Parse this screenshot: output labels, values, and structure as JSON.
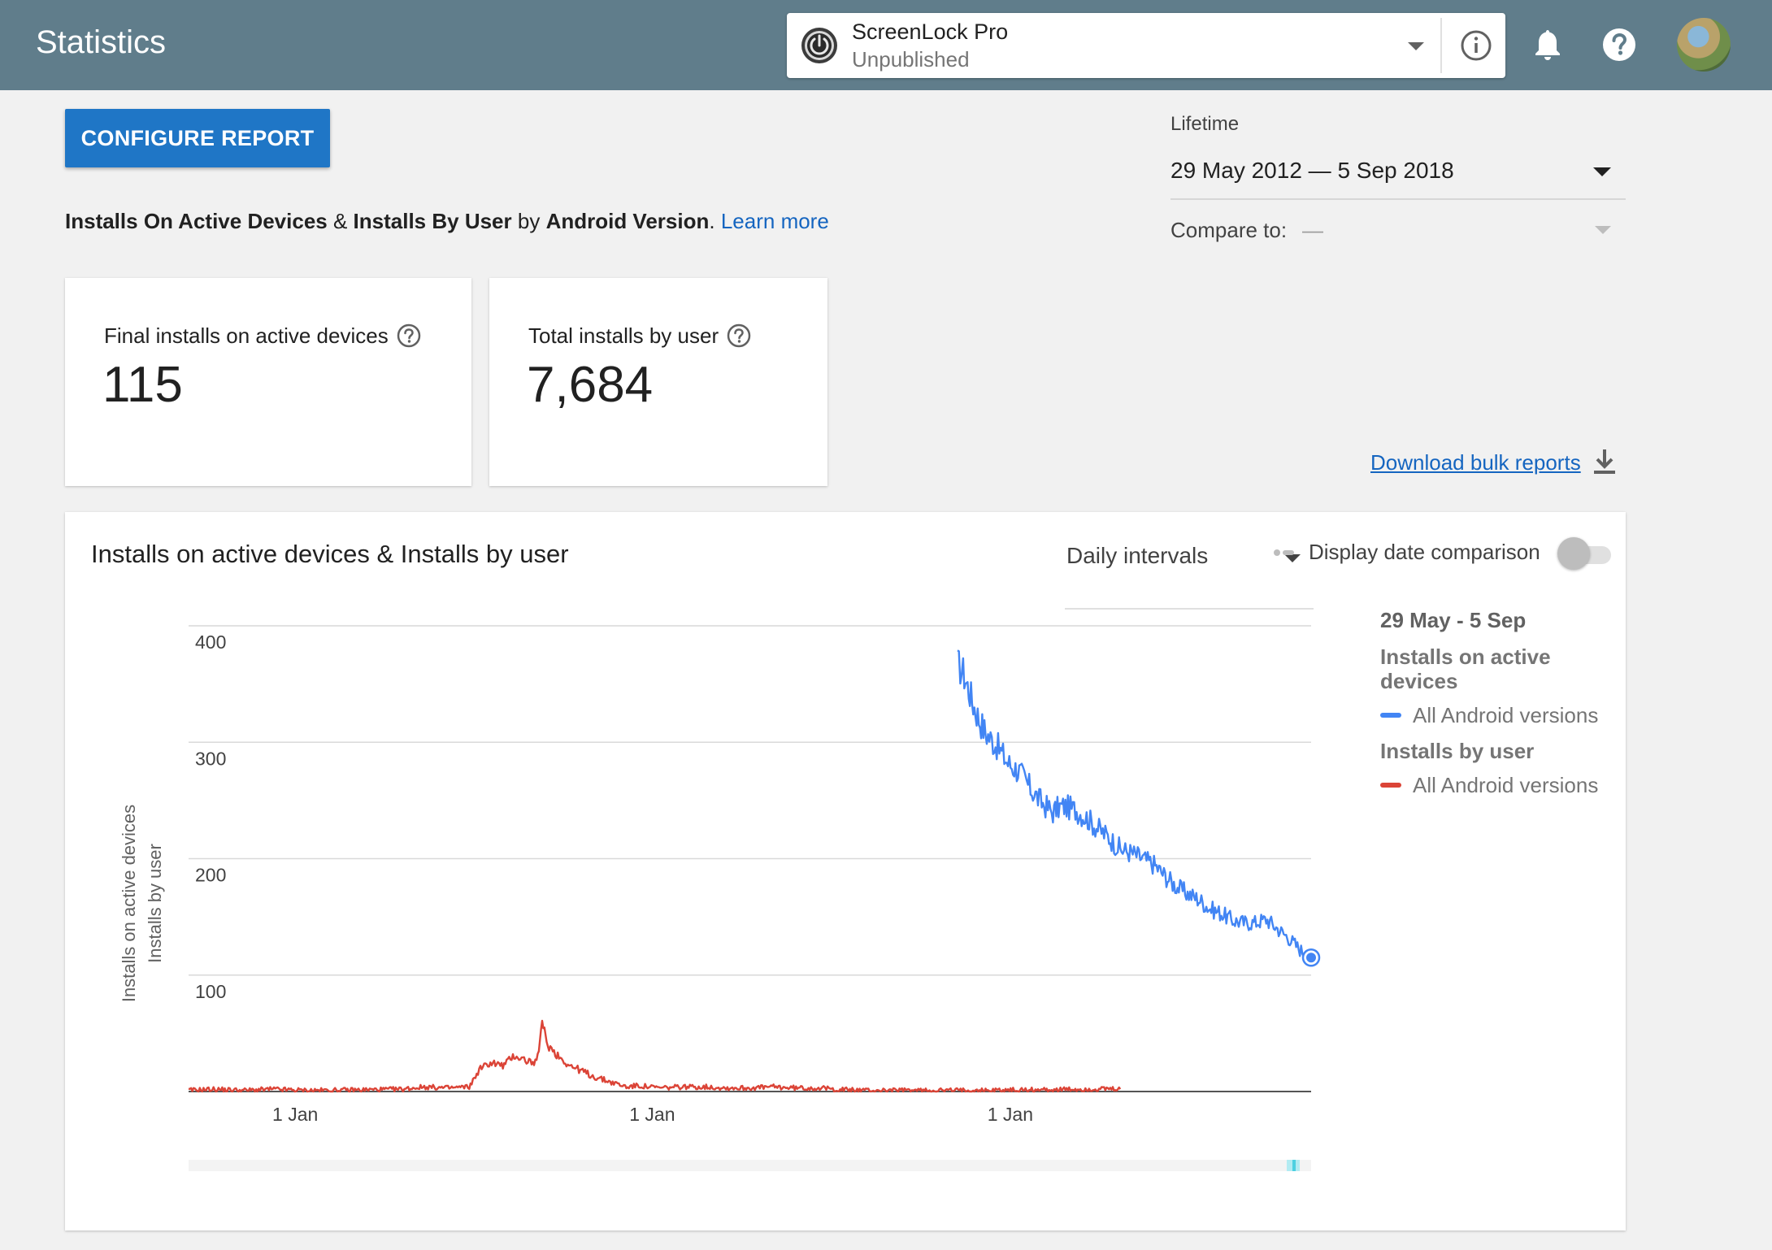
{
  "header": {
    "title": "Statistics",
    "app": {
      "name": "ScreenLock Pro",
      "status": "Unpublished"
    }
  },
  "toolbar": {
    "configure_label": "CONFIGURE REPORT"
  },
  "description": {
    "part1": "Installs On Active Devices",
    "amp": " & ",
    "part2": "Installs By User",
    "by": " by ",
    "part3": "Android Version",
    "period": ".",
    "learn_more": "Learn more"
  },
  "date_range": {
    "label": "Lifetime",
    "value": "29 May 2012 — 5 Sep 2018",
    "compare_label": "Compare to:",
    "compare_value": "—"
  },
  "stats": [
    {
      "label": "Final installs on active devices",
      "value": "115"
    },
    {
      "label": "Total installs by user",
      "value": "7,684"
    }
  ],
  "download_label": "Download bulk reports",
  "chart_section": {
    "title": "Installs on active devices & Installs by user",
    "interval": "Daily intervals",
    "comparison_label": "Display date comparison",
    "comparison_on": false
  },
  "legend": {
    "date": "29 May - 5 Sep",
    "group1": "Installs on active devices",
    "item1": "All Android versions",
    "group2": "Installs by user",
    "item2": "All Android versions"
  },
  "colors": {
    "header": "#607d8b",
    "accent": "#1f76c6",
    "series_active": "#4285f4",
    "series_user": "#db4437"
  },
  "chart_data": {
    "type": "line",
    "xlabel": "",
    "ylabel": [
      "Installs on active devices",
      "Installs by user"
    ],
    "ylim": [
      0,
      400
    ],
    "yticks": [
      100,
      200,
      300,
      400
    ],
    "xticks": [
      "1 Jan",
      "1 Jan",
      "1 Jan"
    ],
    "x_domain_note": "",
    "grid": true,
    "legend_position": "right",
    "series": [
      {
        "name": "Installs on active devices",
        "color": "#4285f4",
        "points": [
          [
            0.685,
            367
          ],
          [
            0.69,
            360
          ],
          [
            0.695,
            345
          ],
          [
            0.7,
            330
          ],
          [
            0.705,
            318
          ],
          [
            0.71,
            308
          ],
          [
            0.72,
            297
          ],
          [
            0.73,
            282
          ],
          [
            0.74,
            275
          ],
          [
            0.75,
            260
          ],
          [
            0.76,
            248
          ],
          [
            0.77,
            240
          ],
          [
            0.775,
            244
          ],
          [
            0.78,
            245
          ],
          [
            0.79,
            242
          ],
          [
            0.8,
            235
          ],
          [
            0.81,
            226
          ],
          [
            0.82,
            218
          ],
          [
            0.83,
            208
          ],
          [
            0.84,
            205
          ],
          [
            0.85,
            200
          ],
          [
            0.86,
            195
          ],
          [
            0.87,
            185
          ],
          [
            0.88,
            176
          ],
          [
            0.89,
            170
          ],
          [
            0.9,
            165
          ],
          [
            0.91,
            157
          ],
          [
            0.92,
            153
          ],
          [
            0.93,
            147
          ],
          [
            0.94,
            145
          ],
          [
            0.95,
            145
          ],
          [
            0.96,
            148
          ],
          [
            0.97,
            140
          ],
          [
            0.98,
            132
          ],
          [
            0.99,
            122
          ],
          [
            1.0,
            115
          ]
        ]
      },
      {
        "name": "Installs by user",
        "color": "#db4437",
        "points": [
          [
            0.0,
            1
          ],
          [
            0.02,
            2
          ],
          [
            0.05,
            1
          ],
          [
            0.075,
            2
          ],
          [
            0.1,
            1
          ],
          [
            0.125,
            1
          ],
          [
            0.19,
            2
          ],
          [
            0.21,
            4
          ],
          [
            0.23,
            3
          ],
          [
            0.25,
            4
          ],
          [
            0.26,
            20
          ],
          [
            0.27,
            25
          ],
          [
            0.28,
            22
          ],
          [
            0.29,
            31
          ],
          [
            0.3,
            27
          ],
          [
            0.31,
            24
          ],
          [
            0.315,
            58
          ],
          [
            0.32,
            40
          ],
          [
            0.33,
            30
          ],
          [
            0.34,
            22
          ],
          [
            0.35,
            18
          ],
          [
            0.36,
            13
          ],
          [
            0.37,
            10
          ],
          [
            0.38,
            7
          ],
          [
            0.39,
            4
          ],
          [
            0.4,
            5
          ],
          [
            0.42,
            3
          ],
          [
            0.44,
            4
          ],
          [
            0.46,
            4
          ],
          [
            0.48,
            3
          ],
          [
            0.5,
            3
          ],
          [
            0.52,
            4
          ],
          [
            0.54,
            3
          ],
          [
            0.56,
            3
          ],
          [
            0.575,
            2
          ],
          [
            0.6,
            1
          ],
          [
            0.67,
            1
          ],
          [
            0.69,
            1
          ],
          [
            0.83,
            2
          ]
        ]
      }
    ]
  }
}
